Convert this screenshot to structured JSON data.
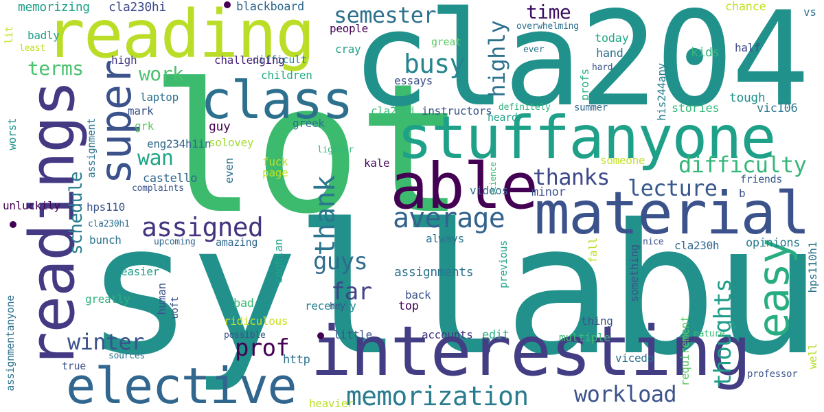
{
  "words": [
    {
      "text": "syllabus",
      "color": "#22918b"
    },
    {
      "text": "lot",
      "color": "#3cba6e"
    },
    {
      "text": "cla204",
      "color": "#21918c"
    },
    {
      "text": "interesting",
      "color": "#433d84"
    },
    {
      "text": "reading",
      "color": "#bade28"
    },
    {
      "text": "readings",
      "color": "#443a83"
    },
    {
      "text": "stuffanyone",
      "color": "#1fa088"
    },
    {
      "text": "material",
      "color": "#3b528b"
    },
    {
      "text": "able",
      "color": "#440154"
    },
    {
      "text": "class",
      "color": "#2d708e"
    },
    {
      "text": "elective",
      "color": "#31668e"
    },
    {
      "text": "super",
      "color": "#3b528b"
    },
    {
      "text": "easy",
      "color": "#27ad81"
    },
    {
      "text": "memorization",
      "color": "#297b8e"
    },
    {
      "text": "assigned",
      "color": "#453581"
    },
    {
      "text": "average",
      "color": "#33638d"
    },
    {
      "text": "thank",
      "color": "#2a768e"
    },
    {
      "text": "busy",
      "color": "#25848e"
    },
    {
      "text": "semester",
      "color": "#2d708e"
    },
    {
      "text": "thanks",
      "color": "#3e4989"
    },
    {
      "text": "difficulty",
      "color": "#35b779"
    },
    {
      "text": "lecture",
      "color": "#38588c"
    },
    {
      "text": "workload",
      "color": "#3b528b"
    },
    {
      "text": "winter",
      "color": "#3b528b"
    },
    {
      "text": "prof",
      "color": "#440154"
    },
    {
      "text": "far",
      "color": "#404387"
    },
    {
      "text": "guys",
      "color": "#2f6c8e"
    },
    {
      "text": "thoughts",
      "color": "#1f9e89"
    },
    {
      "text": "highly",
      "color": "#2c728e"
    },
    {
      "text": "time",
      "color": "#3d0f62"
    },
    {
      "text": "terms",
      "color": "#4ac16d"
    },
    {
      "text": "work",
      "color": "#4ac16d"
    },
    {
      "text": "wan",
      "color": "#21a585"
    },
    {
      "text": "schedule",
      "color": "#287d8e"
    },
    {
      "text": "assignmentanyone",
      "color": "#2c728e"
    },
    {
      "text": "memorizing",
      "color": "#1fa088"
    },
    {
      "text": "cla230hi",
      "color": "#3e4989"
    },
    {
      "text": "blackboard",
      "color": "#31688e"
    },
    {
      "text": "chance",
      "color": "#c2df23"
    },
    {
      "text": "vs",
      "color": "#2c728e"
    },
    {
      "text": "people",
      "color": "#440154"
    },
    {
      "text": "cray",
      "color": "#20a386"
    },
    {
      "text": "great",
      "color": "#5ec962"
    },
    {
      "text": "overwhelming",
      "color": "#2d708e"
    },
    {
      "text": "ever",
      "color": "#2c728e"
    },
    {
      "text": "half",
      "color": "#3e4989"
    },
    {
      "text": "kids",
      "color": "#35b779"
    },
    {
      "text": "hard",
      "color": "#3b528b"
    },
    {
      "text": "hand",
      "color": "#2c728e"
    },
    {
      "text": "today",
      "color": "#22a884"
    },
    {
      "text": "profs",
      "color": "#29af7f"
    },
    {
      "text": "his244any",
      "color": "#277f8e"
    },
    {
      "text": "tough",
      "color": "#21918c"
    },
    {
      "text": "stories",
      "color": "#35b779"
    },
    {
      "text": "vic106",
      "color": "#2a788e"
    },
    {
      "text": "requirements",
      "color": "#453781"
    },
    {
      "text": "lit",
      "color": "#c8e020"
    },
    {
      "text": "badly",
      "color": "#1f9e89"
    },
    {
      "text": "least",
      "color": "#c2df23"
    },
    {
      "text": "difficult",
      "color": "#26828e"
    },
    {
      "text": "high",
      "color": "#443983"
    },
    {
      "text": "challenging",
      "color": "#482475"
    },
    {
      "text": "children",
      "color": "#25ab82"
    },
    {
      "text": "essays",
      "color": "#3b528b"
    },
    {
      "text": "mark",
      "color": "#3b528b"
    },
    {
      "text": "laptop",
      "color": "#2d708e"
    },
    {
      "text": "cla230j",
      "color": "#3cbb75"
    },
    {
      "text": "instructors",
      "color": "#3b528b"
    },
    {
      "text": "definitely",
      "color": "#2db27d"
    },
    {
      "text": "summer",
      "color": "#31688e"
    },
    {
      "text": "heard",
      "color": "#1fa088"
    },
    {
      "text": "greek",
      "color": "#2c728e"
    },
    {
      "text": "guy",
      "color": "#440154"
    },
    {
      "text": "solovey",
      "color": "#a2da37"
    },
    {
      "text": "grk",
      "color": "#5ec962"
    },
    {
      "text": "eng234h1in",
      "color": "#31688e"
    },
    {
      "text": "assignment",
      "color": "#2c728e"
    },
    {
      "text": "worst",
      "color": "#21918c"
    },
    {
      "text": "lighter",
      "color": "#35b779"
    },
    {
      "text": "someone",
      "color": "#c2df23"
    },
    {
      "text": "science",
      "color": "#3cbb75"
    },
    {
      "text": "friends",
      "color": "#38598c"
    },
    {
      "text": "even",
      "color": "#2c728e"
    },
    {
      "text": "fuck",
      "color": "#bade28"
    },
    {
      "text": "page",
      "color": "#c2df23"
    },
    {
      "text": "kale",
      "color": "#46085c"
    },
    {
      "text": "castello",
      "color": "#31688e"
    },
    {
      "text": "complaints",
      "color": "#3b528b"
    },
    {
      "text": "minor",
      "color": "#3b528b"
    },
    {
      "text": "b",
      "color": "#3b528b"
    },
    {
      "text": "videos",
      "color": "#2c728e"
    },
    {
      "text": "unluckily",
      "color": "#440154"
    },
    {
      "text": "hps110",
      "color": "#3b528b"
    },
    {
      "text": "cla230h1",
      "color": "#2d708e"
    },
    {
      "text": "bunch",
      "color": "#2c728e"
    },
    {
      "text": "upcoming",
      "color": "#31688e"
    },
    {
      "text": "amazing",
      "color": "#31688e"
    },
    {
      "text": "always",
      "color": "#2c728e"
    },
    {
      "text": "previous",
      "color": "#20a386"
    },
    {
      "text": "fall",
      "color": "#b8de29"
    },
    {
      "text": "nice",
      "color": "#3b528b"
    },
    {
      "text": "cla230h",
      "color": "#31688e"
    },
    {
      "text": "opinions",
      "color": "#287d8e"
    },
    {
      "text": "something",
      "color": "#3b528b"
    },
    {
      "text": "hps110h1",
      "color": "#2c728e"
    },
    {
      "text": "easier",
      "color": "#1fa088"
    },
    {
      "text": "coghlan",
      "color": "#20a386"
    },
    {
      "text": "assignments",
      "color": "#2c728e"
    },
    {
      "text": "human",
      "color": "#3b528b"
    },
    {
      "text": "uoft",
      "color": "#3b528b"
    },
    {
      "text": "greatly",
      "color": "#2db27d"
    },
    {
      "text": "bad",
      "color": "#3cbb75"
    },
    {
      "text": "back",
      "color": "#3b528b"
    },
    {
      "text": "top",
      "color": "#440154"
    },
    {
      "text": "recently",
      "color": "#26828e"
    },
    {
      "text": "hey",
      "color": "#3b528b"
    },
    {
      "text": "thing",
      "color": "#3b528b"
    },
    {
      "text": "ridiculous",
      "color": "#c8e020"
    },
    {
      "text": "possible",
      "color": "#3b528b"
    },
    {
      "text": "little",
      "color": "#3b528b"
    },
    {
      "text": "accounts",
      "color": "#46337e"
    },
    {
      "text": "edit",
      "color": "#29af7f"
    },
    {
      "text": "requirement",
      "color": "#5ec962"
    },
    {
      "text": "nature",
      "color": "#3cbb75"
    },
    {
      "text": "multiple",
      "color": "#3cbb75"
    },
    {
      "text": "sources",
      "color": "#2c728e"
    },
    {
      "text": "true",
      "color": "#3b528b"
    },
    {
      "text": "http",
      "color": "#2c728e"
    },
    {
      "text": "vicedo",
      "color": "#2c728e"
    },
    {
      "text": "professor",
      "color": "#3b528b"
    },
    {
      "text": "well",
      "color": "#b5de2b"
    },
    {
      "text": "heavier",
      "color": "#bade28"
    }
  ]
}
